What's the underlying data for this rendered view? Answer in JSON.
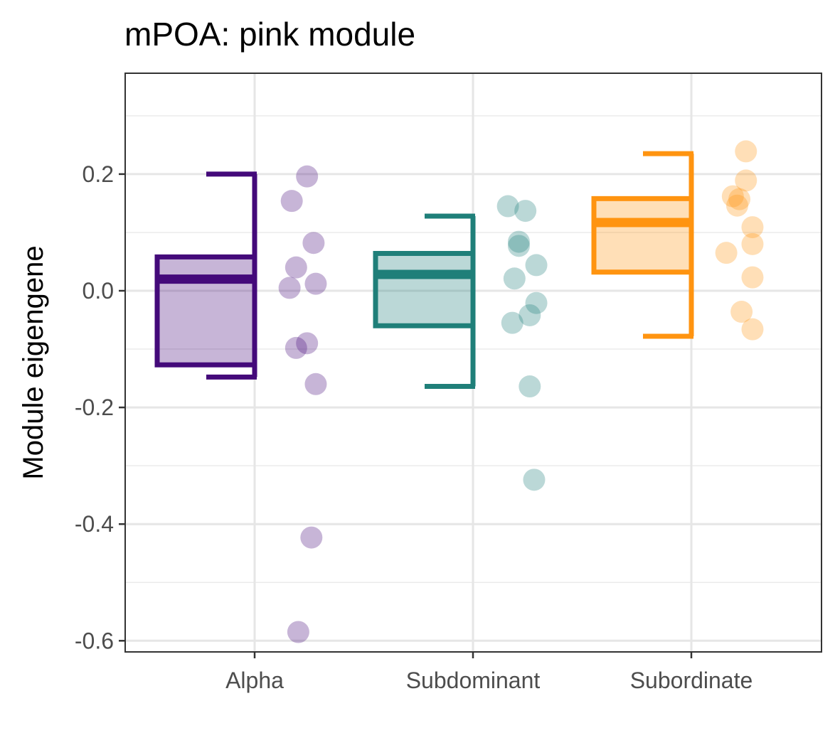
{
  "chart_data": {
    "type": "boxplot",
    "title": "mPOA: pink module",
    "xlabel": "",
    "ylabel": "Module eigengene",
    "ylim": [
      -0.62,
      0.37
    ],
    "yticks": [
      0.2,
      0.0,
      -0.2,
      -0.4,
      -0.6
    ],
    "ytick_labels": [
      "0.2",
      "0.0",
      "-0.2",
      "-0.4",
      "-0.6"
    ],
    "grid": true,
    "categories": [
      "Alpha",
      "Subdominant",
      "Subordinate"
    ],
    "colors": [
      "#440a7a",
      "#1f7f79",
      "#ff9410"
    ],
    "groups": [
      {
        "name": "Alpha",
        "whisker_low": -0.148,
        "q1": -0.127,
        "median": 0.02,
        "q3": 0.058,
        "whisker_high": 0.2,
        "points": [
          0.196,
          0.154,
          0.082,
          0.04,
          0.012,
          0.005,
          -0.09,
          -0.098,
          -0.16,
          -0.423,
          -0.585
        ],
        "jitter": [
          0.24,
          0.17,
          0.27,
          0.19,
          0.28,
          0.16,
          0.24,
          0.19,
          0.28,
          0.26,
          0.2
        ]
      },
      {
        "name": "Subdominant",
        "whisker_low": -0.164,
        "q1": -0.06,
        "median": 0.028,
        "q3": 0.064,
        "whisker_high": 0.128,
        "points": [
          0.145,
          0.137,
          0.084,
          0.077,
          0.044,
          0.021,
          -0.021,
          -0.042,
          -0.055,
          -0.164,
          -0.324
        ],
        "jitter": [
          0.16,
          0.24,
          0.21,
          0.21,
          0.29,
          0.19,
          0.29,
          0.26,
          0.18,
          0.26,
          0.28
        ]
      },
      {
        "name": "Subordinate",
        "whisker_low": -0.078,
        "q1": 0.032,
        "median": 0.117,
        "q3": 0.158,
        "whisker_high": 0.235,
        "points": [
          0.239,
          0.189,
          0.162,
          0.157,
          0.146,
          0.109,
          0.08,
          0.065,
          0.023,
          -0.036,
          -0.066
        ],
        "jitter": [
          0.25,
          0.25,
          0.19,
          0.22,
          0.21,
          0.28,
          0.28,
          0.16,
          0.28,
          0.23,
          0.28
        ]
      }
    ]
  }
}
